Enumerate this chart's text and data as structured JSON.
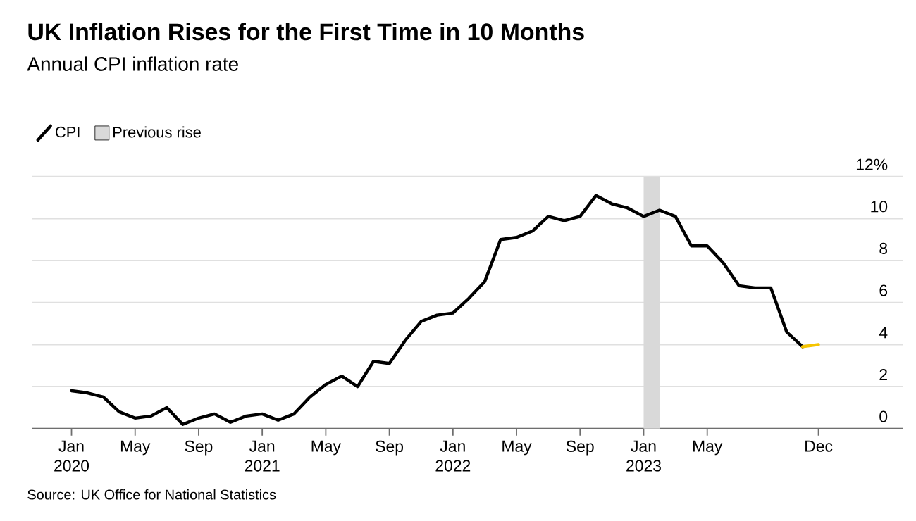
{
  "chart_data": {
    "type": "line",
    "title": "UK Inflation Rises for the First Time in 10 Months",
    "subtitle": "Annual CPI inflation rate",
    "annotations": [
      "Source: UK Office for National Statistics"
    ],
    "series": [
      {
        "name": "CPI",
        "color": "#000000",
        "x": [
          "2020-01",
          "2020-02",
          "2020-03",
          "2020-04",
          "2020-05",
          "2020-06",
          "2020-07",
          "2020-08",
          "2020-09",
          "2020-10",
          "2020-11",
          "2020-12",
          "2021-01",
          "2021-02",
          "2021-03",
          "2021-04",
          "2021-05",
          "2021-06",
          "2021-07",
          "2021-08",
          "2021-09",
          "2021-10",
          "2021-11",
          "2021-12",
          "2022-01",
          "2022-02",
          "2022-03",
          "2022-04",
          "2022-05",
          "2022-06",
          "2022-07",
          "2022-08",
          "2022-09",
          "2022-10",
          "2022-11",
          "2022-12",
          "2023-01",
          "2023-02",
          "2023-03",
          "2023-04",
          "2023-05",
          "2023-06",
          "2023-07",
          "2023-08",
          "2023-09",
          "2023-10",
          "2023-11"
        ],
        "values": [
          1.8,
          1.7,
          1.5,
          0.8,
          0.5,
          0.6,
          1.0,
          0.2,
          0.5,
          0.7,
          0.3,
          0.6,
          0.7,
          0.4,
          0.7,
          1.5,
          2.1,
          2.5,
          2.0,
          3.2,
          3.1,
          4.2,
          5.1,
          5.4,
          5.5,
          6.2,
          7.0,
          9.0,
          9.1,
          9.4,
          10.1,
          9.9,
          10.1,
          11.1,
          10.7,
          10.5,
          10.1,
          10.4,
          10.1,
          8.7,
          8.7,
          7.9,
          6.8,
          6.7,
          6.7,
          4.6,
          3.9
        ]
      },
      {
        "color": "#f5c400",
        "x": [
          "2023-11",
          "2023-12"
        ],
        "values": [
          3.9,
          4.0
        ]
      }
    ],
    "bands": [
      {
        "axis": "x",
        "from": "2023-01",
        "to": "2023-02",
        "label": "Previous rise",
        "color": "#d9d9d9"
      }
    ],
    "xlim": [
      "2019-10-16",
      "2024-05-10"
    ],
    "xticks": [
      {
        "value": "2020-01",
        "label": "Jan 2020"
      },
      {
        "value": "2020-05",
        "label": "May"
      },
      {
        "value": "2020-09",
        "label": "Sep"
      },
      {
        "value": "2021-01",
        "label": "Jan 2021"
      },
      {
        "value": "2021-05",
        "label": "May"
      },
      {
        "value": "2021-09",
        "label": "Sep"
      },
      {
        "value": "2022-01",
        "label": "Jan 2022"
      },
      {
        "value": "2022-05",
        "label": "May"
      },
      {
        "value": "2022-09",
        "label": "Sep"
      },
      {
        "value": "2023-01",
        "label": "Jan 2023"
      },
      {
        "value": "2023-05",
        "label": "May"
      },
      {
        "value": "2023-12",
        "label": "Dec"
      }
    ],
    "ylim": [
      0,
      12
    ],
    "yticks": [
      0,
      2,
      4,
      6,
      8,
      10,
      {
        "value": 12,
        "label": "12%"
      }
    ],
    "grid": "y",
    "legend": "top left"
  }
}
